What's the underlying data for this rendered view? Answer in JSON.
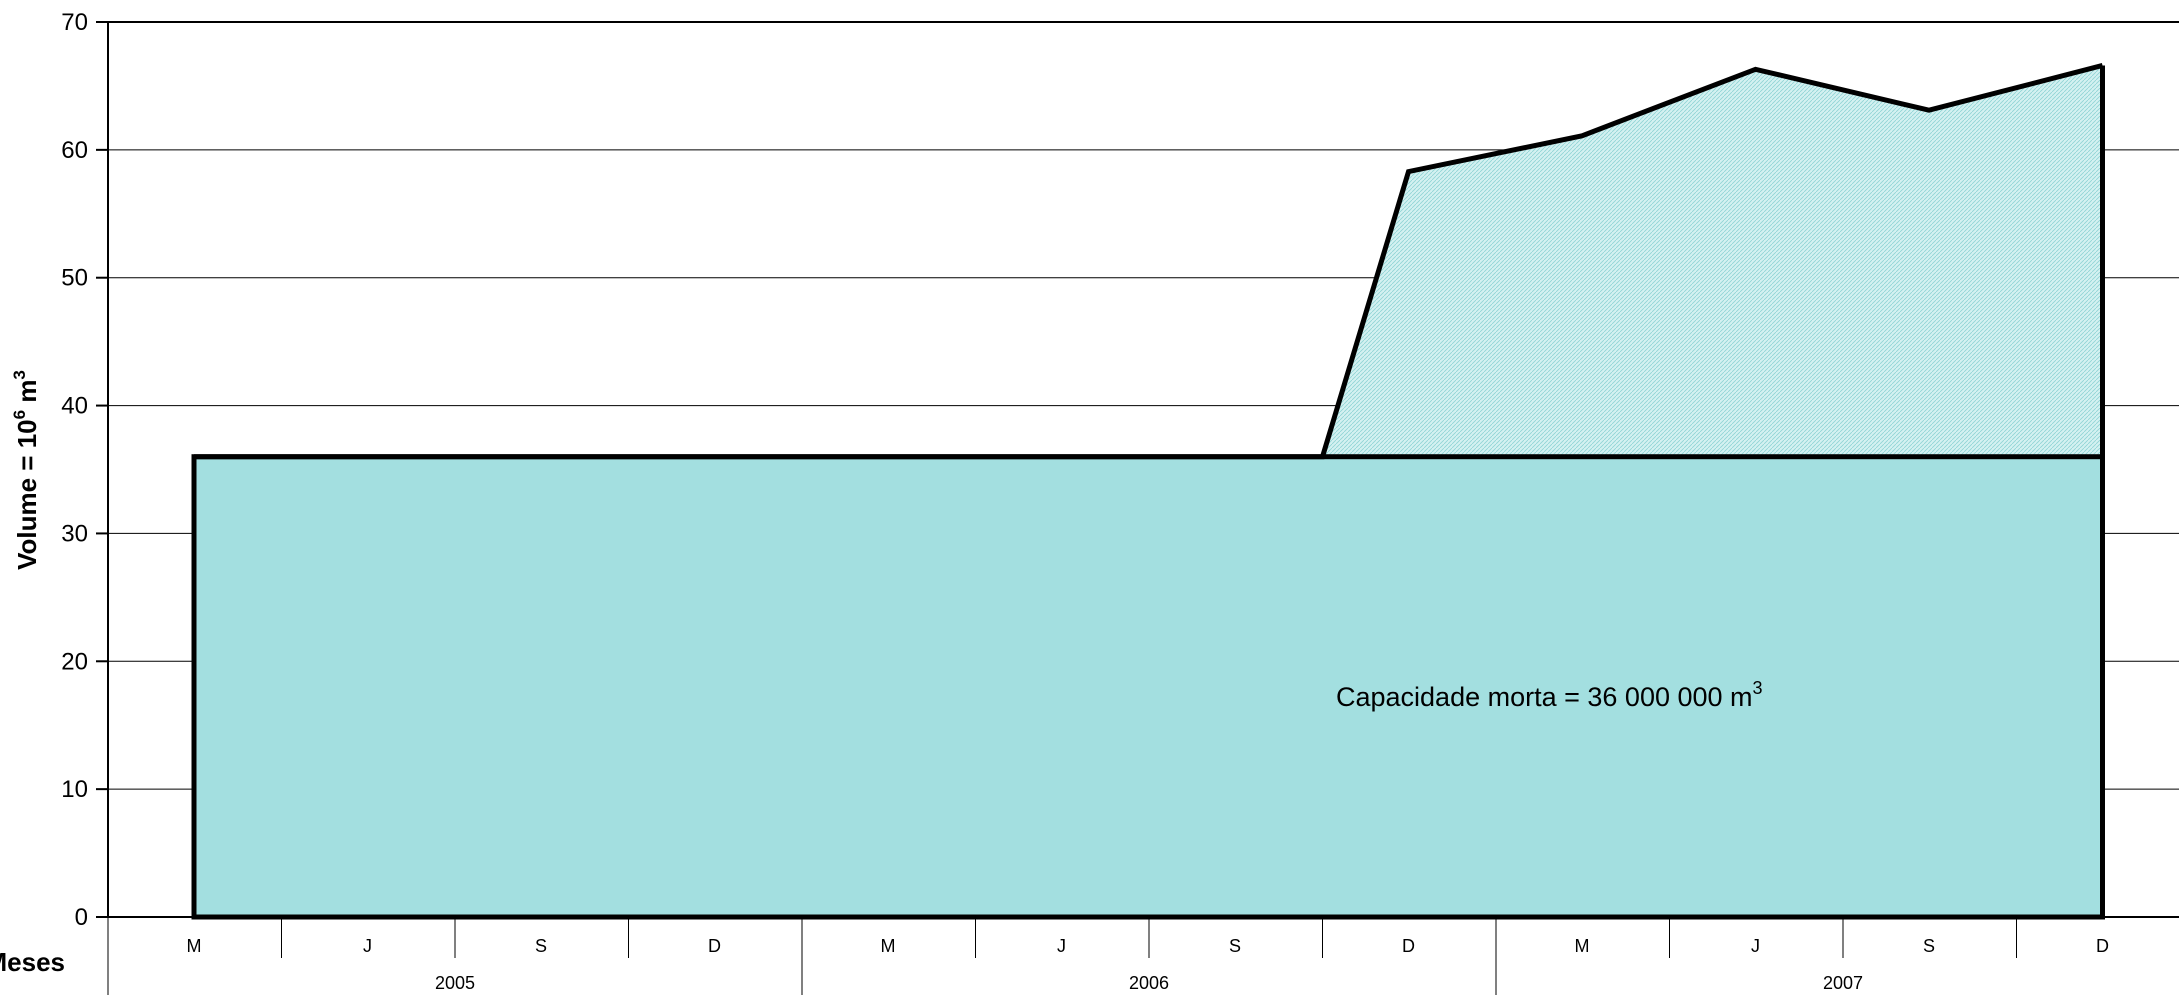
{
  "chart_data": {
    "type": "area",
    "ylabel": "Volume = 10",
    "ylabel_exp": "6",
    "ylabel_unit": " m",
    "ylabel_unit_exp": "3",
    "xlabel": "Meses",
    "ylim": [
      0,
      70
    ],
    "yticks": [
      0,
      10,
      20,
      30,
      40,
      50,
      60,
      70
    ],
    "grid": true,
    "colors": {
      "dead_fill": "#a3dfe0",
      "live_fill": "#d4f1f1",
      "line": "#000000"
    },
    "x_slots": [
      "M",
      "J",
      "S",
      "D",
      "M",
      "J",
      "S",
      "D",
      "M",
      "J",
      "S",
      "D"
    ],
    "years": [
      "2005",
      "2006",
      "2007"
    ],
    "series": [
      {
        "x": [
          "2005-M",
          "2005-J",
          "2005-S",
          "2005-D",
          "2006-M",
          "2006-J",
          "2006-S",
          "2006-S/D",
          "2006-D",
          "2007-M",
          "2007-J",
          "2007-S",
          "2007-D"
        ],
        "values": [
          36,
          36,
          36,
          36,
          36,
          36,
          36,
          36,
          58.3,
          61.1,
          66.3,
          63.1,
          66.6
        ]
      }
    ],
    "dead_capacity": 36,
    "annotation": "Capacidade morta = 36 000 000 m",
    "annotation_exp": "3"
  }
}
